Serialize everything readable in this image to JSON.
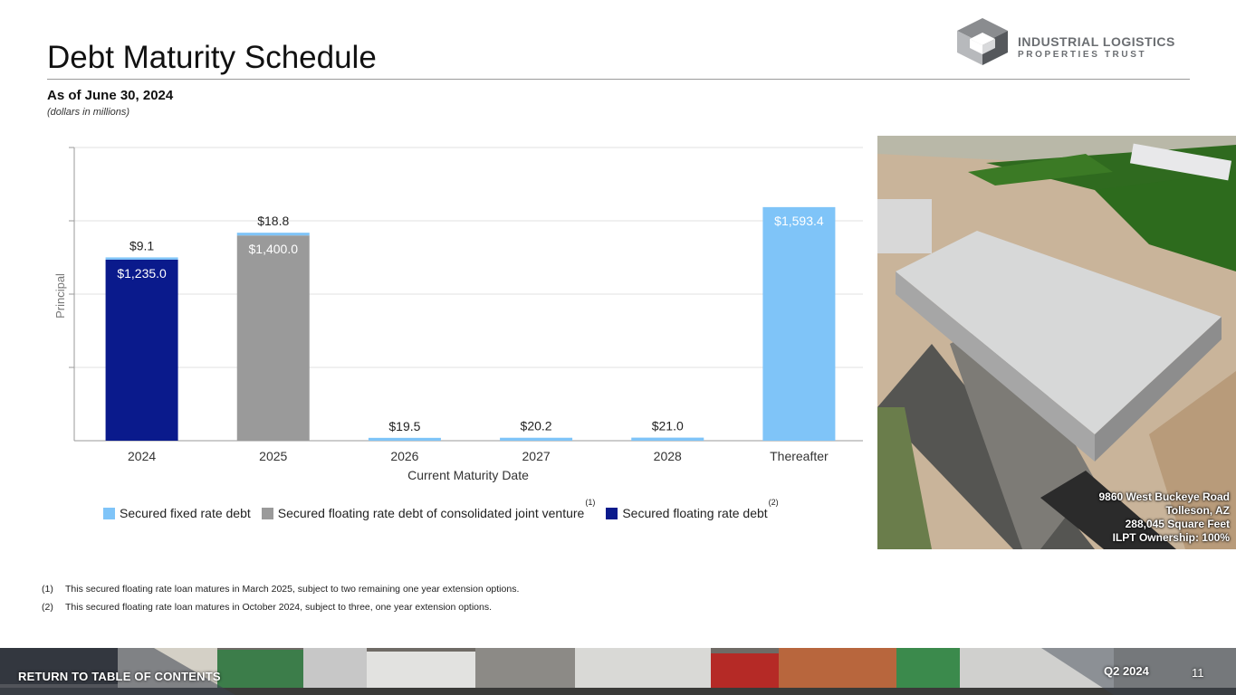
{
  "header": {
    "title": "Debt Maturity Schedule",
    "subtitle": "As of June 30, 2024",
    "units": "(dollars in millions)"
  },
  "logo": {
    "line1": "INDUSTRIAL LOGISTICS",
    "line2": "PROPERTIES TRUST"
  },
  "chart_data": {
    "type": "bar",
    "stacked": true,
    "xlabel": "Current Maturity Date",
    "ylabel": "Principal",
    "ylim": [
      0,
      2000
    ],
    "grid": true,
    "categories": [
      "2024",
      "2025",
      "2026",
      "2027",
      "2028",
      "Thereafter"
    ],
    "series": [
      {
        "name": "Secured floating rate debt",
        "color": "#0a1a8c",
        "values": [
          1235.0,
          0,
          0,
          0,
          0,
          0
        ],
        "labels": [
          "$1,235.0",
          "",
          "",
          "",
          "",
          ""
        ]
      },
      {
        "name": "Secured floating rate debt of consolidated joint venture",
        "color": "#9a9a9a",
        "values": [
          0,
          1400.0,
          0,
          0,
          0,
          0
        ],
        "labels": [
          "",
          "$1,400.0",
          "",
          "",
          "",
          ""
        ]
      },
      {
        "name": "Secured fixed rate debt",
        "color": "#7fc4f8",
        "values": [
          9.1,
          18.8,
          19.5,
          20.2,
          21.0,
          1593.4
        ],
        "labels": [
          "$9.1",
          "$18.8",
          "$19.5",
          "$20.2",
          "$21.0",
          "$1,593.4"
        ]
      }
    ],
    "legend_order": [
      "Secured fixed rate debt",
      "Secured floating rate debt of consolidated joint venture",
      "Secured floating rate debt"
    ],
    "legend_placement": "bottom"
  },
  "legend": {
    "items": [
      {
        "label": "Secured fixed rate debt",
        "color": "#7fc4f8",
        "note": ""
      },
      {
        "label": "Secured floating rate debt of consolidated joint venture",
        "color": "#9a9a9a",
        "note": "(1)"
      },
      {
        "label": "Secured floating rate debt",
        "color": "#0a1a8c",
        "note": "(2)"
      }
    ]
  },
  "photo": {
    "address": "9860 West Buckeye Road",
    "city": "Tolleson, AZ",
    "size": "288,045 Square Feet",
    "ownership": "ILPT Ownership: 100%"
  },
  "footnotes": [
    {
      "num": "(1)",
      "text": "This secured floating rate loan matures in March 2025, subject to two remaining one year extension options."
    },
    {
      "num": "(2)",
      "text": "This secured floating rate loan matures in October 2024, subject to three, one year extension options."
    }
  ],
  "footer": {
    "link": "RETURN TO TABLE OF CONTENTS",
    "quarter": "Q2 2024",
    "page": "11"
  }
}
